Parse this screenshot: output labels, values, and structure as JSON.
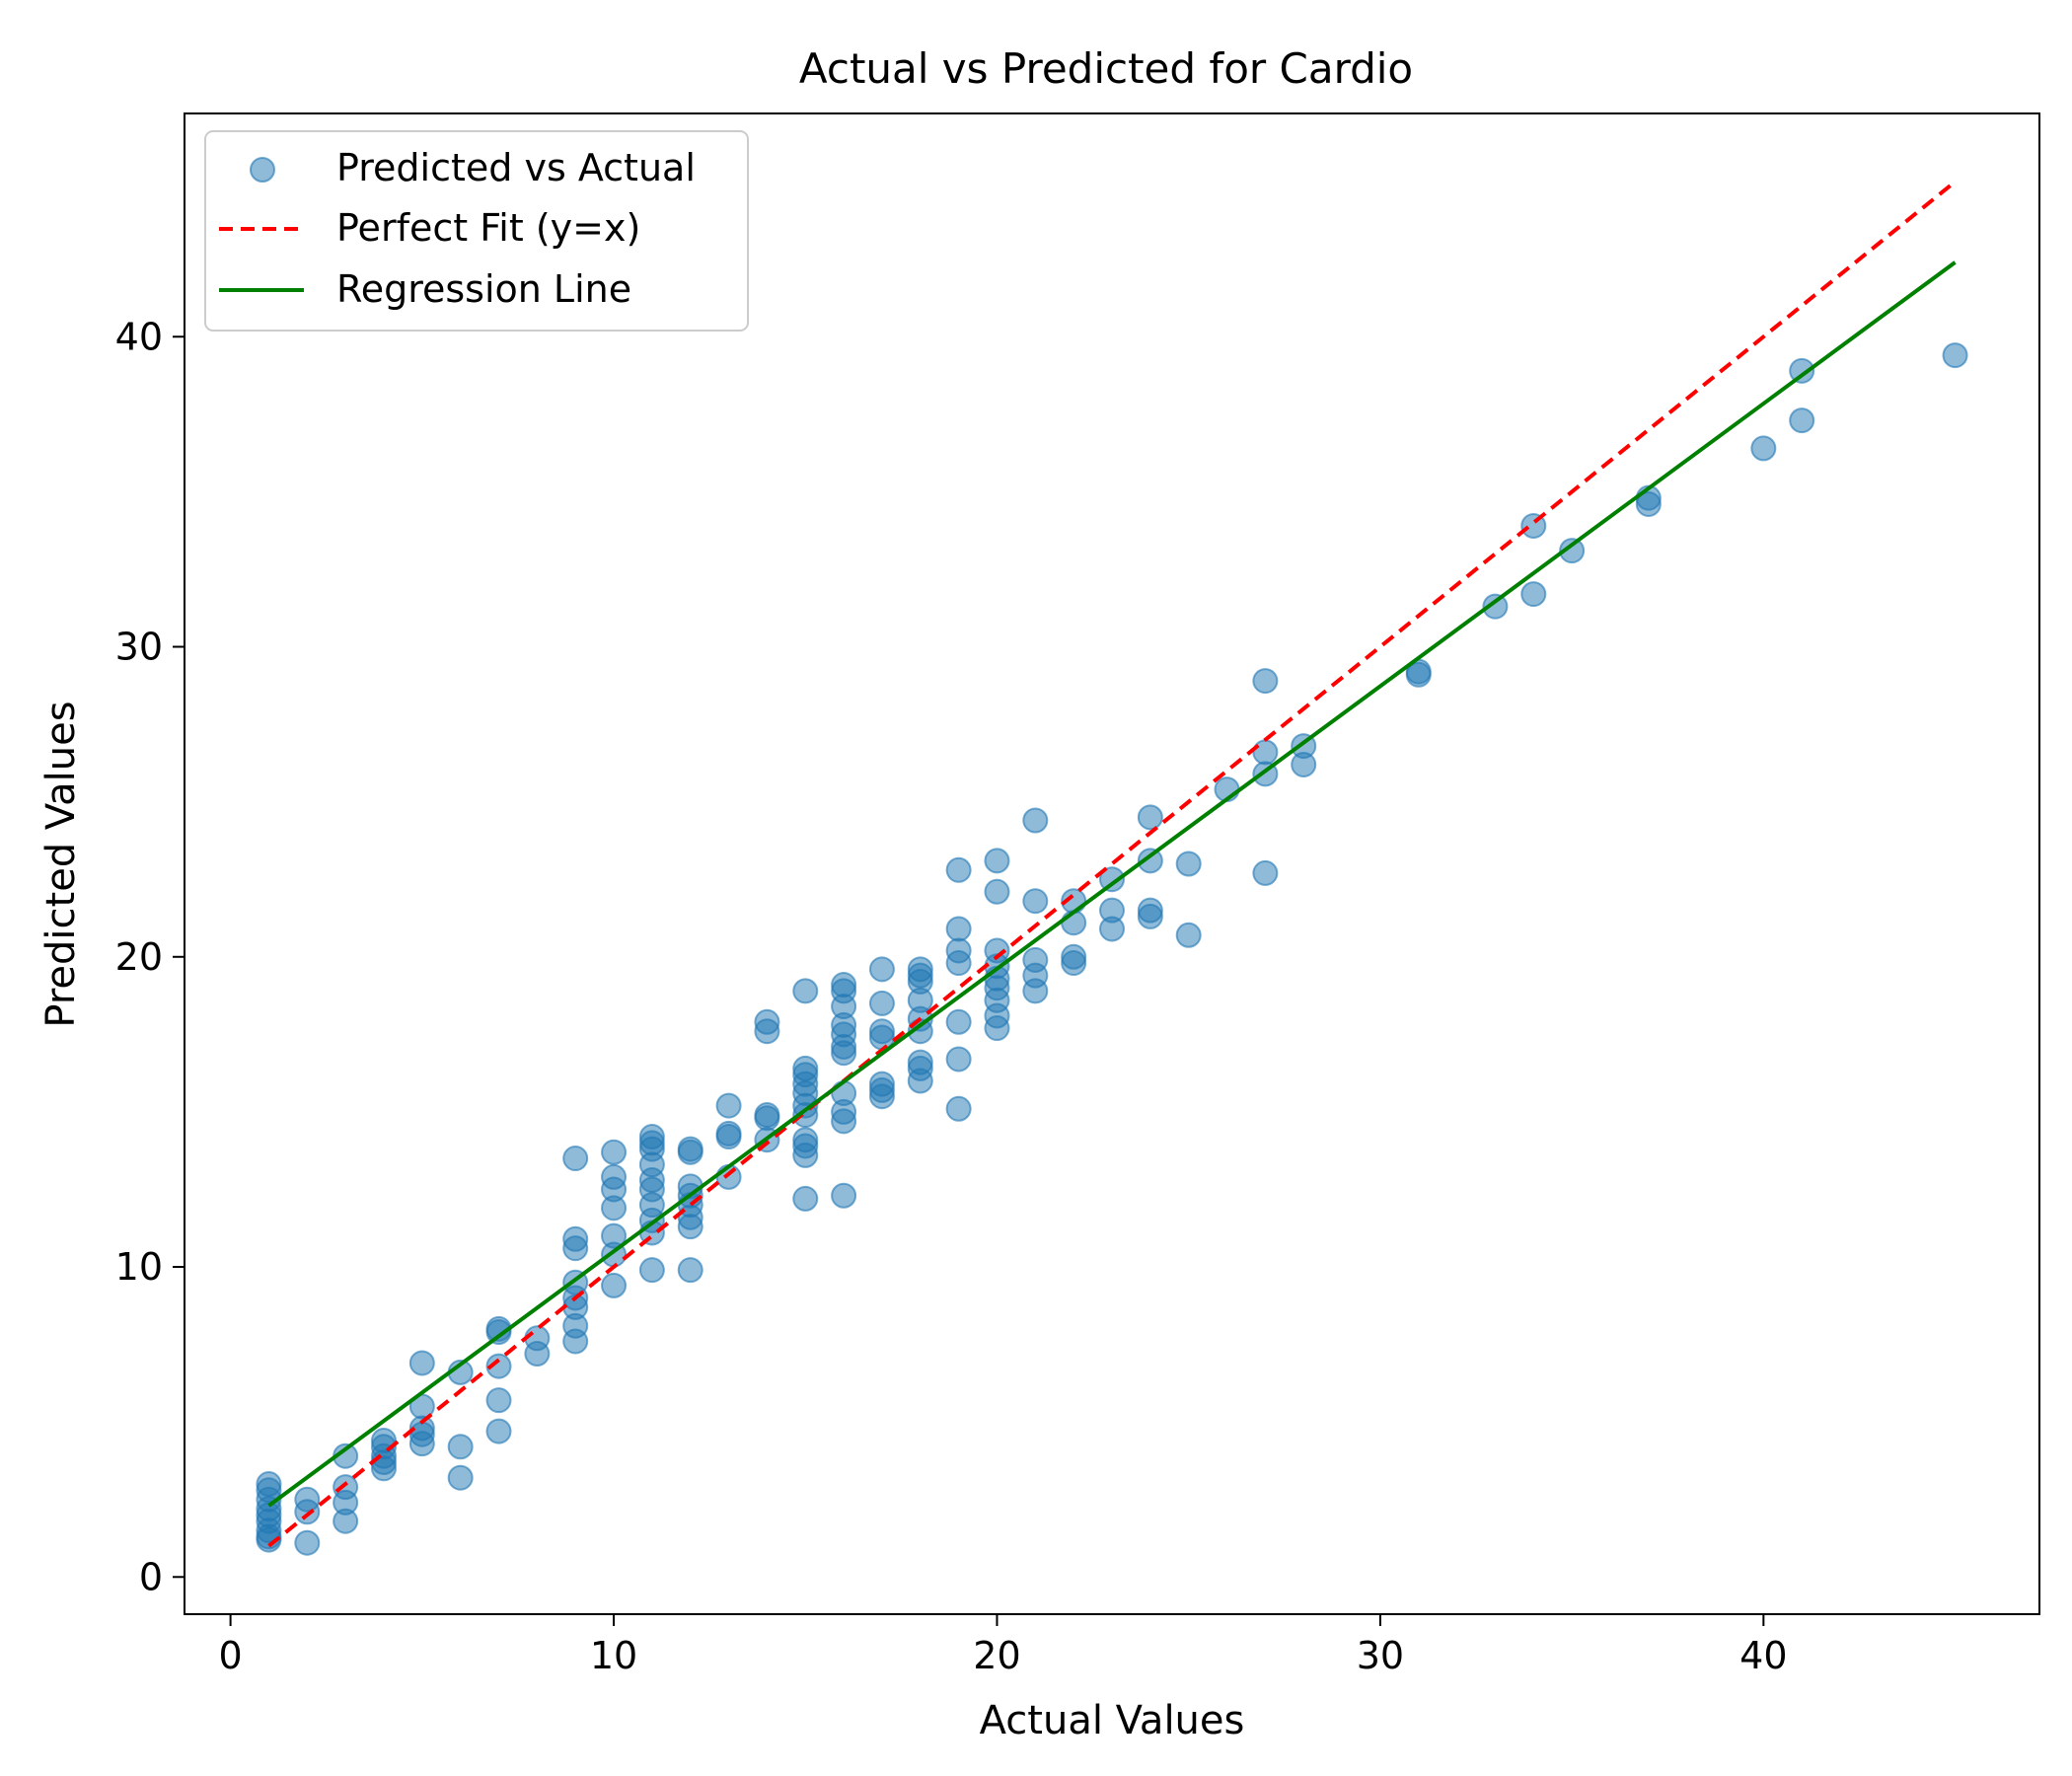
{
  "chart_data": {
    "type": "scatter",
    "title": "Actual vs Predicted for Cardio",
    "xlabel": "Actual Values",
    "ylabel": "Predicted Values",
    "xlim": [
      -1.2,
      47.2
    ],
    "ylim": [
      -1.2,
      47.2
    ],
    "xticks": [
      0,
      10,
      20,
      30,
      40
    ],
    "yticks": [
      0,
      10,
      20,
      30,
      40
    ],
    "grid": false,
    "legend_position": "upper-left",
    "colors": {
      "scatter": "#1f77b4",
      "perfect_fit": "#ff0000",
      "regression": "#008000"
    },
    "series": [
      {
        "name": "Predicted vs Actual",
        "kind": "scatter",
        "points": [
          [
            1,
            1.2
          ],
          [
            1,
            1.3
          ],
          [
            1,
            1.5
          ],
          [
            1,
            1.8
          ],
          [
            1,
            2.0
          ],
          [
            1,
            2.2
          ],
          [
            1,
            2.5
          ],
          [
            1,
            2.8
          ],
          [
            1,
            3.0
          ],
          [
            2,
            1.1
          ],
          [
            2,
            2.1
          ],
          [
            2,
            2.5
          ],
          [
            3,
            1.8
          ],
          [
            3,
            2.4
          ],
          [
            3,
            2.9
          ],
          [
            3,
            3.9
          ],
          [
            4,
            3.5
          ],
          [
            4,
            3.7
          ],
          [
            4,
            3.9
          ],
          [
            4,
            4.2
          ],
          [
            4,
            4.4
          ],
          [
            5,
            4.3
          ],
          [
            5,
            4.6
          ],
          [
            5,
            4.8
          ],
          [
            5,
            5.5
          ],
          [
            5,
            6.9
          ],
          [
            6,
            3.2
          ],
          [
            6,
            4.2
          ],
          [
            6,
            6.6
          ],
          [
            7,
            4.7
          ],
          [
            7,
            5.7
          ],
          [
            7,
            6.8
          ],
          [
            7,
            7.9
          ],
          [
            7,
            8.0
          ],
          [
            8,
            7.2
          ],
          [
            8,
            7.7
          ],
          [
            9,
            7.6
          ],
          [
            9,
            8.1
          ],
          [
            9,
            8.7
          ],
          [
            9,
            9.0
          ],
          [
            9,
            9.5
          ],
          [
            9,
            10.6
          ],
          [
            9,
            10.9
          ],
          [
            9,
            13.5
          ],
          [
            10,
            9.4
          ],
          [
            10,
            10.4
          ],
          [
            10,
            11.0
          ],
          [
            10,
            11.9
          ],
          [
            10,
            12.5
          ],
          [
            10,
            12.9
          ],
          [
            10,
            13.7
          ],
          [
            11,
            9.9
          ],
          [
            11,
            11.1
          ],
          [
            11,
            11.5
          ],
          [
            11,
            12.0
          ],
          [
            11,
            12.5
          ],
          [
            11,
            12.8
          ],
          [
            11,
            13.3
          ],
          [
            11,
            13.8
          ],
          [
            11,
            14.0
          ],
          [
            11,
            14.2
          ],
          [
            12,
            9.9
          ],
          [
            12,
            11.3
          ],
          [
            12,
            11.6
          ],
          [
            12,
            12.0
          ],
          [
            12,
            12.3
          ],
          [
            12,
            12.6
          ],
          [
            12,
            13.7
          ],
          [
            12,
            13.8
          ],
          [
            13,
            12.9
          ],
          [
            13,
            14.2
          ],
          [
            13,
            14.3
          ],
          [
            13,
            15.2
          ],
          [
            14,
            14.1
          ],
          [
            14,
            14.8
          ],
          [
            14,
            14.9
          ],
          [
            14,
            17.6
          ],
          [
            14,
            17.9
          ],
          [
            15,
            12.2
          ],
          [
            15,
            13.6
          ],
          [
            15,
            13.9
          ],
          [
            15,
            14.1
          ],
          [
            15,
            14.9
          ],
          [
            15,
            15.2
          ],
          [
            15,
            15.6
          ],
          [
            15,
            15.9
          ],
          [
            15,
            16.2
          ],
          [
            15,
            16.4
          ],
          [
            15,
            18.9
          ],
          [
            16,
            12.3
          ],
          [
            16,
            14.7
          ],
          [
            16,
            15.0
          ],
          [
            16,
            15.6
          ],
          [
            16,
            16.9
          ],
          [
            16,
            17.1
          ],
          [
            16,
            17.5
          ],
          [
            16,
            17.8
          ],
          [
            16,
            18.4
          ],
          [
            16,
            18.9
          ],
          [
            16,
            19.1
          ],
          [
            17,
            15.5
          ],
          [
            17,
            15.7
          ],
          [
            17,
            15.9
          ],
          [
            17,
            17.4
          ],
          [
            17,
            17.6
          ],
          [
            17,
            18.5
          ],
          [
            17,
            19.6
          ],
          [
            18,
            16.0
          ],
          [
            18,
            16.4
          ],
          [
            18,
            16.6
          ],
          [
            18,
            17.6
          ],
          [
            18,
            18.0
          ],
          [
            18,
            18.6
          ],
          [
            18,
            19.2
          ],
          [
            18,
            19.4
          ],
          [
            18,
            19.6
          ],
          [
            19,
            15.1
          ],
          [
            19,
            16.7
          ],
          [
            19,
            17.9
          ],
          [
            19,
            19.8
          ],
          [
            19,
            20.2
          ],
          [
            19,
            20.9
          ],
          [
            19,
            22.8
          ],
          [
            20,
            17.7
          ],
          [
            20,
            18.1
          ],
          [
            20,
            18.6
          ],
          [
            20,
            19.0
          ],
          [
            20,
            19.3
          ],
          [
            20,
            19.7
          ],
          [
            20,
            20.2
          ],
          [
            20,
            22.1
          ],
          [
            20,
            23.1
          ],
          [
            21,
            18.9
          ],
          [
            21,
            19.4
          ],
          [
            21,
            19.9
          ],
          [
            21,
            21.8
          ],
          [
            21,
            24.4
          ],
          [
            22,
            19.8
          ],
          [
            22,
            20.0
          ],
          [
            22,
            21.1
          ],
          [
            22,
            21.8
          ],
          [
            23,
            20.9
          ],
          [
            23,
            21.5
          ],
          [
            23,
            22.5
          ],
          [
            24,
            21.3
          ],
          [
            24,
            21.5
          ],
          [
            24,
            23.1
          ],
          [
            24,
            24.5
          ],
          [
            25,
            20.7
          ],
          [
            25,
            23.0
          ],
          [
            26,
            25.4
          ],
          [
            27,
            22.7
          ],
          [
            27,
            25.9
          ],
          [
            27,
            26.6
          ],
          [
            27,
            28.9
          ],
          [
            28,
            26.2
          ],
          [
            28,
            26.8
          ],
          [
            31,
            29.1
          ],
          [
            31,
            29.2
          ],
          [
            33,
            31.3
          ],
          [
            34,
            31.7
          ],
          [
            34,
            33.9
          ],
          [
            35,
            33.1
          ],
          [
            37,
            34.6
          ],
          [
            37,
            34.8
          ],
          [
            40,
            36.4
          ],
          [
            41,
            37.3
          ],
          [
            41,
            38.9
          ],
          [
            45,
            39.4
          ]
        ]
      },
      {
        "name": "Perfect Fit (y=x)",
        "kind": "line",
        "style": "dashed",
        "x": [
          1,
          45
        ],
        "y": [
          1,
          45
        ]
      },
      {
        "name": "Regression Line",
        "kind": "line",
        "style": "solid",
        "x": [
          1,
          45
        ],
        "y": [
          2.3,
          42.4
        ]
      }
    ]
  }
}
